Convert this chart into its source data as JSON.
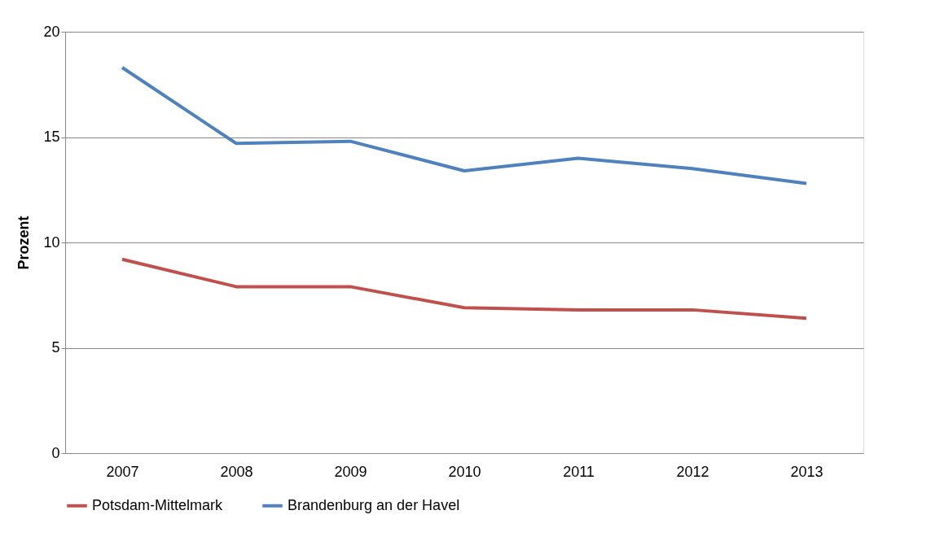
{
  "chart_data": {
    "type": "line",
    "ylabel": "Prozent",
    "categories": [
      "2007",
      "2008",
      "2009",
      "2010",
      "2011",
      "2012",
      "2013"
    ],
    "series": [
      {
        "name": "Potsdam-Mittelmark",
        "color": "#c0504d",
        "values": [
          9.2,
          7.9,
          7.9,
          6.9,
          6.8,
          6.8,
          6.4
        ]
      },
      {
        "name": "Brandenburg an der Havel",
        "color": "#4f81bd",
        "values": [
          18.3,
          14.7,
          14.8,
          13.4,
          14.0,
          13.5,
          12.8
        ]
      }
    ],
    "ylim": [
      0,
      20
    ],
    "yticks": [
      0,
      5,
      10,
      15,
      20
    ],
    "grid": "y",
    "legend": "bottom",
    "marker": "none",
    "line_style": "solid"
  }
}
